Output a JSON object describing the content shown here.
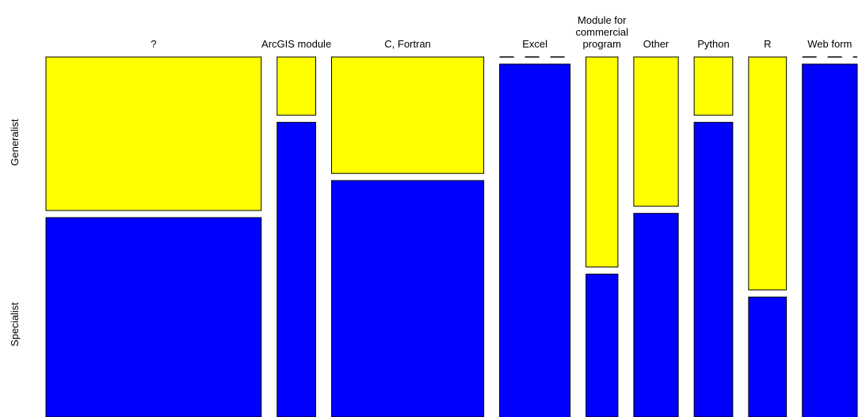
{
  "chart_data": {
    "type": "mosaic",
    "title": "",
    "row_labels": [
      "Generalist",
      "Specialist"
    ],
    "colors": {
      "Generalist": "#ffff00",
      "Specialist": "#0000ff"
    },
    "categories": [
      {
        "name": "?",
        "label_lines": [
          "?"
        ],
        "share": 0.29,
        "generalist": 0.435,
        "specialist": 0.565
      },
      {
        "name": "ArcGIS module",
        "label_lines": [
          "ArcGIS module"
        ],
        "share": 0.052,
        "generalist": 0.165,
        "specialist": 0.835
      },
      {
        "name": "C, Fortran",
        "label_lines": [
          "C, Fortran"
        ],
        "share": 0.205,
        "generalist": 0.33,
        "specialist": 0.67
      },
      {
        "name": "Excel",
        "label_lines": [
          "Excel"
        ],
        "share": 0.095,
        "generalist": 0.0,
        "specialist": 1.0
      },
      {
        "name": "Module for commercial program",
        "label_lines": [
          "Module for",
          "commercial",
          "program"
        ],
        "share": 0.043,
        "generalist": 0.595,
        "specialist": 0.405
      },
      {
        "name": "Other",
        "label_lines": [
          "Other"
        ],
        "share": 0.06,
        "generalist": 0.423,
        "specialist": 0.577
      },
      {
        "name": "Python",
        "label_lines": [
          "Python"
        ],
        "share": 0.052,
        "generalist": 0.165,
        "specialist": 0.835
      },
      {
        "name": "R",
        "label_lines": [
          "R"
        ],
        "share": 0.051,
        "generalist": 0.66,
        "specialist": 0.34
      },
      {
        "name": "Web form",
        "label_lines": [
          "Web form"
        ],
        "share": 0.074,
        "generalist": 0.0,
        "specialist": 1.0
      }
    ],
    "grid": false,
    "legend": "none"
  }
}
